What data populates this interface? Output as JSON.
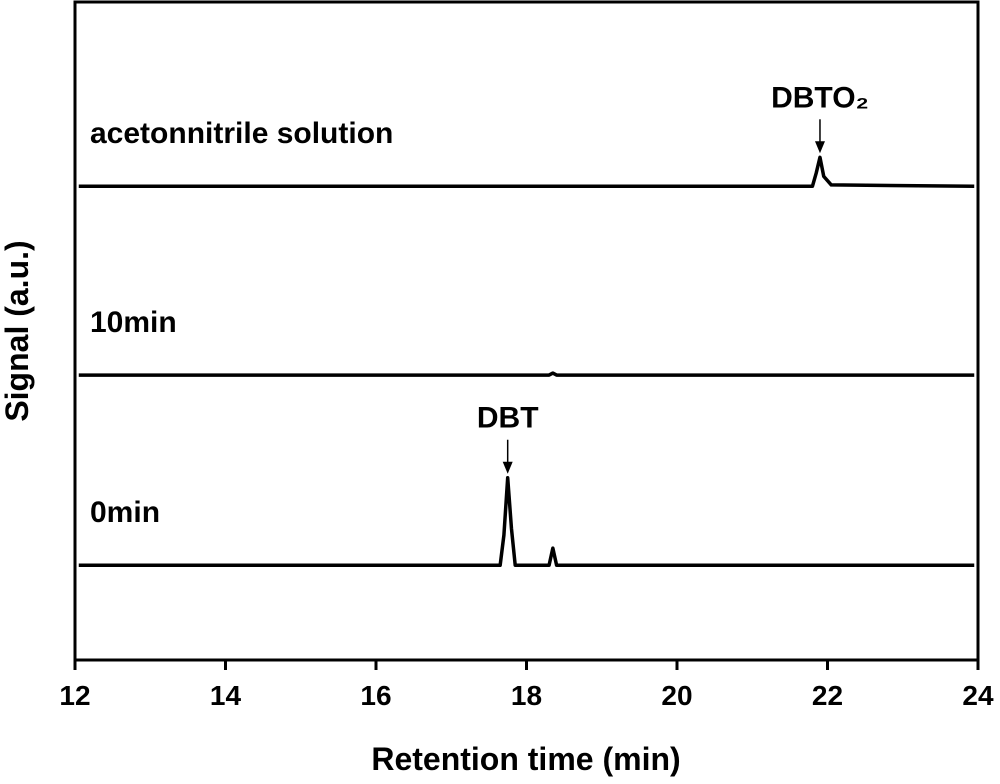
{
  "chart_data": {
    "type": "line",
    "x_label": "Retention time (min)",
    "y_label": "Signal (a.u.)",
    "x": [
      12.05,
      17.65,
      17.7,
      17.75,
      17.8,
      17.85,
      18.3,
      18.35,
      18.4,
      21.8,
      21.85,
      21.9,
      21.95,
      22.05,
      23.95
    ],
    "series": [
      {
        "name": "acetonnitrile solution",
        "color": "#000000",
        "values": [
          7.2,
          7.2,
          7.2,
          7.2,
          7.2,
          7.2,
          7.2,
          7.2,
          7.2,
          7.2,
          7.4,
          7.64,
          7.35,
          7.22,
          7.2
        ]
      },
      {
        "name": "10min",
        "color": "#000000",
        "values": [
          4.33,
          4.33,
          4.33,
          4.33,
          4.33,
          4.33,
          4.33,
          4.36,
          4.33,
          4.33,
          4.33,
          4.33,
          4.33,
          4.33,
          4.33
        ]
      },
      {
        "name": "0min",
        "color": "#000000",
        "values": [
          1.44,
          1.44,
          1.9,
          2.77,
          2.0,
          1.44,
          1.44,
          1.7,
          1.44,
          1.44,
          1.44,
          1.44,
          1.44,
          1.44,
          1.44
        ]
      }
    ],
    "annotations": [
      "DBTO₂",
      "DBT"
    ],
    "xlim": [
      12,
      24
    ],
    "xticks": [
      12,
      14,
      16,
      18,
      20,
      22,
      24
    ],
    "ylim": [
      0,
      10
    ]
  }
}
